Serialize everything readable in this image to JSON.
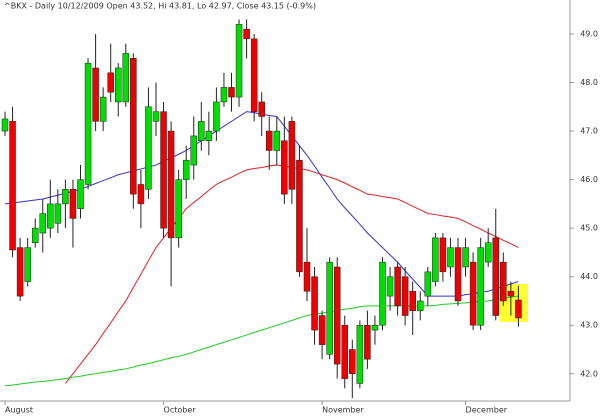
{
  "chart_data": {
    "type": "candlestick",
    "title": "^BKX - Daily 10/12/2009 Open 43.52, Hi 43.81, Lo 42.97, Close 43.15 (-0.9%)",
    "categories": [
      "August",
      null,
      null,
      null,
      null,
      null,
      null,
      null,
      null,
      null,
      null,
      null,
      null,
      null,
      null,
      null,
      null,
      null,
      null,
      null,
      null,
      "October",
      null,
      null,
      null,
      null,
      null,
      null,
      null,
      null,
      null,
      null,
      null,
      null,
      null,
      null,
      null,
      null,
      null,
      null,
      null,
      null,
      "November",
      null,
      null,
      null,
      null,
      null,
      null,
      null,
      null,
      null,
      null,
      null,
      null,
      null,
      null,
      null,
      null,
      null,
      null,
      "December",
      null,
      null,
      null,
      null,
      null,
      null,
      null
    ],
    "open": [
      47.0,
      47.2,
      44.6,
      43.9,
      44.7,
      44.9,
      45.0,
      45.1,
      45.5,
      45.8,
      45.4,
      45.9,
      48.3,
      47.2,
      48.2,
      47.6,
      47.6,
      48.5,
      45.9,
      45.8,
      47.2,
      47.4,
      47.0,
      44.8,
      46.0,
      46.3,
      46.8,
      46.8,
      47.0,
      47.6,
      47.9,
      47.7,
      49.1,
      48.9,
      47.6,
      47.0,
      46.6,
      46.8,
      47.2,
      46.4,
      44.3,
      44.0,
      43.2,
      42.4,
      44.2,
      43.0,
      42.5,
      41.8,
      43.0,
      42.9,
      43.0,
      43.6,
      44.2,
      44.0,
      43.7,
      43.3,
      43.6,
      43.9,
      44.8,
      44.2,
      44.6,
      44.2,
      44.3,
      43.0,
      44.3,
      44.8,
      44.3,
      43.7,
      43.52
    ],
    "high": [
      47.4,
      47.5,
      44.8,
      44.8,
      45.2,
      45.6,
      46.0,
      45.8,
      46.0,
      46.0,
      46.3,
      48.5,
      49.0,
      47.9,
      48.8,
      48.4,
      48.8,
      48.6,
      46.2,
      47.9,
      48.0,
      47.6,
      47.2,
      46.2,
      46.7,
      47.3,
      47.6,
      47.4,
      47.9,
      48.2,
      48.2,
      49.3,
      49.3,
      49.0,
      47.8,
      47.3,
      47.3,
      47.3,
      47.3,
      46.7,
      45.0,
      44.2,
      43.3,
      44.4,
      44.4,
      43.2,
      42.7,
      43.1,
      43.3,
      43.2,
      44.4,
      44.2,
      44.3,
      44.2,
      43.9,
      43.7,
      44.2,
      44.9,
      44.9,
      44.8,
      44.8,
      44.8,
      44.5,
      44.8,
      45.0,
      45.4,
      44.5,
      43.9,
      43.81
    ],
    "low": [
      46.9,
      44.4,
      43.5,
      43.8,
      44.6,
      44.5,
      44.8,
      44.9,
      45.0,
      44.6,
      45.2,
      45.8,
      47.0,
      47.0,
      47.6,
      47.3,
      47.5,
      45.4,
      45.0,
      45.6,
      46.9,
      44.8,
      43.8,
      44.6,
      45.6,
      46.0,
      46.6,
      46.5,
      46.8,
      47.5,
      47.4,
      47.5,
      48.5,
      47.2,
      46.9,
      46.2,
      46.3,
      45.5,
      45.5,
      44.0,
      43.5,
      42.6,
      42.3,
      42.3,
      41.9,
      41.7,
      41.5,
      41.7,
      42.1,
      42.6,
      42.9,
      43.3,
      43.2,
      43.0,
      42.8,
      43.1,
      43.4,
      43.8,
      43.9,
      44.0,
      43.4,
      44.0,
      42.9,
      42.9,
      44.2,
      43.1,
      43.4,
      43.2,
      42.97
    ],
    "close": [
      47.25,
      44.55,
      43.6,
      44.6,
      45.0,
      45.3,
      45.5,
      45.5,
      45.8,
      45.2,
      46.0,
      48.4,
      47.2,
      47.7,
      47.8,
      48.3,
      48.6,
      45.7,
      45.5,
      47.5,
      47.4,
      45.0,
      44.8,
      46.0,
      46.4,
      46.9,
      47.2,
      47.0,
      47.6,
      47.9,
      47.7,
      49.2,
      48.9,
      47.4,
      47.3,
      46.6,
      47.0,
      45.7,
      45.8,
      44.1,
      43.7,
      42.9,
      42.6,
      44.3,
      42.2,
      41.9,
      42.0,
      43.0,
      42.3,
      43.0,
      44.3,
      44.0,
      43.4,
      43.2,
      43.3,
      43.5,
      44.1,
      44.8,
      44.1,
      44.6,
      43.5,
      44.6,
      43.0,
      44.6,
      44.7,
      43.2,
      43.5,
      43.6,
      43.15
    ],
    "up_color": "#00dd00",
    "down_color": "#ee0000",
    "lines": [
      {
        "color": "#3333cc",
        "values": [
          45.5,
          45.52,
          45.54,
          45.56,
          45.58,
          45.6,
          45.64,
          45.68,
          45.72,
          45.76,
          45.8,
          45.86,
          45.92,
          45.98,
          46.04,
          46.1,
          46.14,
          46.18,
          46.22,
          46.26,
          46.3,
          46.38,
          46.45,
          46.52,
          46.6,
          46.7,
          46.8,
          46.9,
          47.0,
          47.1,
          47.2,
          47.3,
          47.4,
          47.38,
          47.35,
          47.32,
          47.3,
          47.1,
          46.9,
          46.7,
          46.5,
          46.28,
          46.05,
          45.83,
          45.6,
          45.42,
          45.25,
          45.08,
          44.9,
          44.75,
          44.6,
          44.45,
          44.3,
          44.12,
          43.95,
          43.78,
          43.6,
          43.6,
          43.6,
          43.6,
          43.6,
          43.63,
          43.65,
          43.68,
          43.7,
          43.75,
          43.8,
          43.85,
          43.9
        ]
      },
      {
        "color": "#dd2222",
        "values": [
          null,
          null,
          null,
          null,
          null,
          null,
          null,
          null,
          41.8,
          42.0,
          42.2,
          42.4,
          42.6,
          42.83,
          43.05,
          43.28,
          43.5,
          43.78,
          44.05,
          44.33,
          44.6,
          44.8,
          45.0,
          45.2,
          45.4,
          45.53,
          45.65,
          45.78,
          45.9,
          45.98,
          46.05,
          46.13,
          46.2,
          46.23,
          46.25,
          46.28,
          46.3,
          46.28,
          46.25,
          46.23,
          46.2,
          46.15,
          46.1,
          46.05,
          46.0,
          45.93,
          45.85,
          45.78,
          45.7,
          45.68,
          45.65,
          45.63,
          45.6,
          45.53,
          45.45,
          45.38,
          45.3,
          45.28,
          45.25,
          45.23,
          45.2,
          45.13,
          45.05,
          44.98,
          44.9,
          44.83,
          44.75,
          44.68,
          44.6
        ]
      },
      {
        "color": "#22cc22",
        "values": [
          41.75,
          41.77,
          41.79,
          41.81,
          41.83,
          41.84,
          41.86,
          41.88,
          41.9,
          41.93,
          41.95,
          41.98,
          42.0,
          42.03,
          42.05,
          42.08,
          42.1,
          42.14,
          42.18,
          42.21,
          42.25,
          42.29,
          42.33,
          42.36,
          42.4,
          42.45,
          42.5,
          42.55,
          42.6,
          42.65,
          42.7,
          42.75,
          42.8,
          42.85,
          42.9,
          42.95,
          43.0,
          43.05,
          43.1,
          43.15,
          43.2,
          43.23,
          43.25,
          43.28,
          43.3,
          43.33,
          43.35,
          43.38,
          43.4,
          43.4,
          43.4,
          43.4,
          43.4,
          43.4,
          43.4,
          43.4,
          43.4,
          43.41,
          43.43,
          43.44,
          43.45,
          43.46,
          43.48,
          43.49,
          43.5,
          43.53,
          43.55,
          43.58,
          43.6
        ]
      }
    ],
    "ylim": [
      41.46,
      49.7
    ],
    "yticks": [
      {
        "value": 42,
        "label": "42.0"
      },
      {
        "value": 43,
        "label": "43.0"
      },
      {
        "value": 44,
        "label": "44.0"
      },
      {
        "value": 45,
        "label": "45.0"
      },
      {
        "value": 46,
        "label": "46.0"
      },
      {
        "value": 47,
        "label": "47.0"
      },
      {
        "value": 48,
        "label": "48.0"
      },
      {
        "value": 49,
        "label": "49.0"
      }
    ]
  }
}
